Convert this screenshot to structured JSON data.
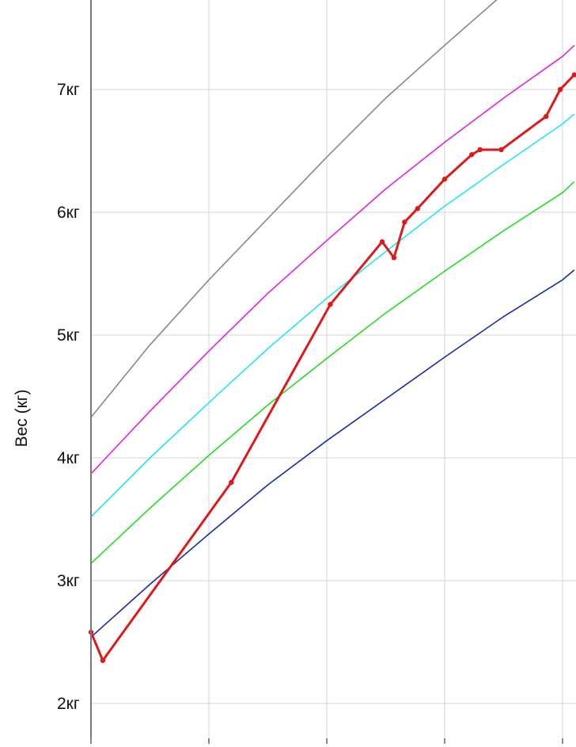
{
  "chart_data": {
    "type": "line",
    "ylabel": "Вес (кг)",
    "ylim": [
      1.8,
      7.86
    ],
    "xlim": [
      0,
      4.1
    ],
    "grid": true,
    "ytick_labels": [
      {
        "value": 2,
        "label": "2кг"
      },
      {
        "value": 3,
        "label": "3кг"
      },
      {
        "value": 4,
        "label": "4кг"
      },
      {
        "value": 5,
        "label": "5кг"
      },
      {
        "value": 6,
        "label": "6кг"
      },
      {
        "value": 7,
        "label": "7кг"
      }
    ],
    "xticks": [
      0,
      1,
      2,
      3,
      4
    ],
    "series": [
      {
        "color": "#888888",
        "points": [
          [
            0,
            4.33
          ],
          [
            0.5,
            4.92
          ],
          [
            1,
            5.45
          ],
          [
            1.5,
            5.95
          ],
          [
            2,
            6.45
          ],
          [
            2.5,
            6.93
          ],
          [
            3,
            7.36
          ],
          [
            3.5,
            7.78
          ],
          [
            4,
            8.15
          ]
        ]
      },
      {
        "color": "#dd22dd",
        "points": [
          [
            0,
            3.87
          ],
          [
            0.5,
            4.38
          ],
          [
            1,
            4.87
          ],
          [
            1.5,
            5.34
          ],
          [
            2,
            5.77
          ],
          [
            2.5,
            6.19
          ],
          [
            3,
            6.57
          ],
          [
            3.5,
            6.93
          ],
          [
            4,
            7.27
          ],
          [
            4.1,
            7.36
          ]
        ]
      },
      {
        "color": "#22e6ee",
        "points": [
          [
            0,
            3.52
          ],
          [
            0.5,
            4.0
          ],
          [
            1,
            4.45
          ],
          [
            1.5,
            4.89
          ],
          [
            2,
            5.3
          ],
          [
            2.5,
            5.68
          ],
          [
            3,
            6.05
          ],
          [
            3.5,
            6.39
          ],
          [
            4,
            6.72
          ],
          [
            4.1,
            6.8
          ]
        ]
      },
      {
        "color": "#22dd22",
        "points": [
          [
            0,
            3.14
          ],
          [
            0.5,
            3.59
          ],
          [
            1,
            4.02
          ],
          [
            1.5,
            4.43
          ],
          [
            2,
            4.81
          ],
          [
            2.5,
            5.18
          ],
          [
            3,
            5.52
          ],
          [
            3.5,
            5.85
          ],
          [
            4,
            6.16
          ],
          [
            4.1,
            6.25
          ]
        ]
      },
      {
        "color": "#1a2aa8",
        "points": [
          [
            0,
            2.54
          ],
          [
            0.5,
            2.97
          ],
          [
            1,
            3.38
          ],
          [
            1.5,
            3.78
          ],
          [
            2,
            4.14
          ],
          [
            2.5,
            4.48
          ],
          [
            3,
            4.82
          ],
          [
            3.5,
            5.15
          ],
          [
            4,
            5.45
          ],
          [
            4.1,
            5.53
          ]
        ]
      },
      {
        "color": "#dd1a1a",
        "markers": true,
        "points": [
          [
            0,
            2.58
          ],
          [
            0.1,
            2.35
          ],
          [
            1.19,
            3.8
          ],
          [
            2.03,
            5.25
          ],
          [
            2.47,
            5.76
          ],
          [
            2.57,
            5.63
          ],
          [
            2.66,
            5.92
          ],
          [
            2.77,
            6.03
          ],
          [
            3,
            6.27
          ],
          [
            3.23,
            6.47
          ],
          [
            3.3,
            6.51
          ],
          [
            3.48,
            6.51
          ],
          [
            3.86,
            6.78
          ],
          [
            3.98,
            7.0
          ],
          [
            4.1,
            7.12
          ]
        ]
      }
    ]
  }
}
